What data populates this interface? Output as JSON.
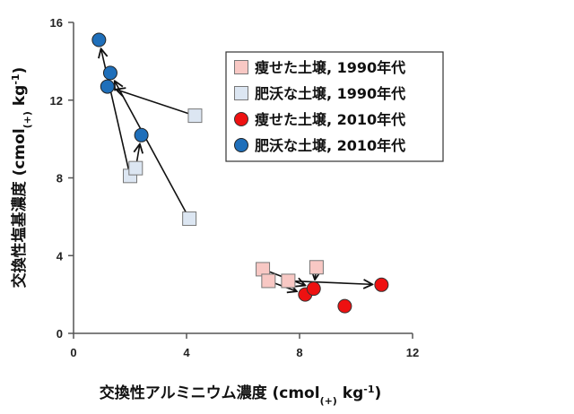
{
  "chart_data": {
    "type": "scatter",
    "xlabel": "交換性アルミニウム濃度 (cmol(+) kg-1)",
    "ylabel": "交換性塩基濃度 (cmol(+) kg-1)",
    "xlabel_parts": {
      "main": "交換性アルミニウム濃度 (cmol",
      "sub": "(+)",
      "unit": " kg",
      "sup": "-1",
      "close": ")"
    },
    "ylabel_parts": {
      "main": "交換性塩基濃度 (cmol",
      "sub": "(+)",
      "unit": " kg",
      "sup": "-1",
      "close": ")"
    },
    "xlim": [
      0,
      12
    ],
    "ylim": [
      0,
      16
    ],
    "x_ticks": [
      0,
      4,
      8,
      12
    ],
    "y_ticks": [
      0,
      4,
      8,
      12,
      16
    ],
    "x_tick_labels": [
      "0",
      "4",
      "8",
      "12"
    ],
    "y_tick_labels": [
      "0",
      "4",
      "8",
      "12",
      "16"
    ],
    "grid": false,
    "legend_position": "top-right",
    "series": [
      {
        "name": "痩せた土壌, 1990年代",
        "marker": "square",
        "color": "#f8c8c4",
        "edge": "#777777",
        "points": [
          [
            6.7,
            3.3
          ],
          [
            6.9,
            2.7
          ],
          [
            7.6,
            2.7
          ],
          [
            8.6,
            3.4
          ]
        ]
      },
      {
        "name": "肥沃な土壌, 1990年代",
        "marker": "square",
        "color": "#dce6f2",
        "edge": "#777777",
        "points": [
          [
            4.3,
            11.2
          ],
          [
            2.0,
            8.1
          ],
          [
            2.2,
            8.5
          ],
          [
            4.1,
            5.9
          ]
        ]
      },
      {
        "name": "痩せた土壌, 2010年代",
        "marker": "circle",
        "color": "#ee1111",
        "edge": "#333333",
        "points": [
          [
            8.2,
            2.0
          ],
          [
            8.5,
            2.3
          ],
          [
            9.6,
            1.4
          ],
          [
            10.9,
            2.5
          ]
        ]
      },
      {
        "name": "肥沃な土壌, 2010年代",
        "marker": "circle",
        "color": "#1f6fba",
        "edge": "#222222",
        "points": [
          [
            0.9,
            15.1
          ],
          [
            1.3,
            13.4
          ],
          [
            1.2,
            12.7
          ],
          [
            2.4,
            10.2
          ]
        ]
      }
    ],
    "arrows": [
      {
        "from": [
          6.7,
          3.3
        ],
        "to": [
          8.5,
          2.3
        ]
      },
      {
        "from": [
          6.9,
          2.7
        ],
        "to": [
          8.2,
          2.0
        ]
      },
      {
        "from": [
          7.6,
          2.7
        ],
        "to": [
          10.9,
          2.5
        ]
      },
      {
        "from": [
          8.6,
          3.4
        ],
        "to": [
          8.5,
          2.3
        ]
      },
      {
        "from": [
          4.3,
          11.2
        ],
        "to": [
          1.2,
          12.7
        ]
      },
      {
        "from": [
          2.0,
          8.1
        ],
        "to": [
          0.9,
          15.1
        ]
      },
      {
        "from": [
          2.2,
          8.5
        ],
        "to": [
          2.4,
          10.2
        ]
      },
      {
        "from": [
          4.1,
          5.9
        ],
        "to": [
          1.3,
          13.4
        ]
      }
    ]
  }
}
